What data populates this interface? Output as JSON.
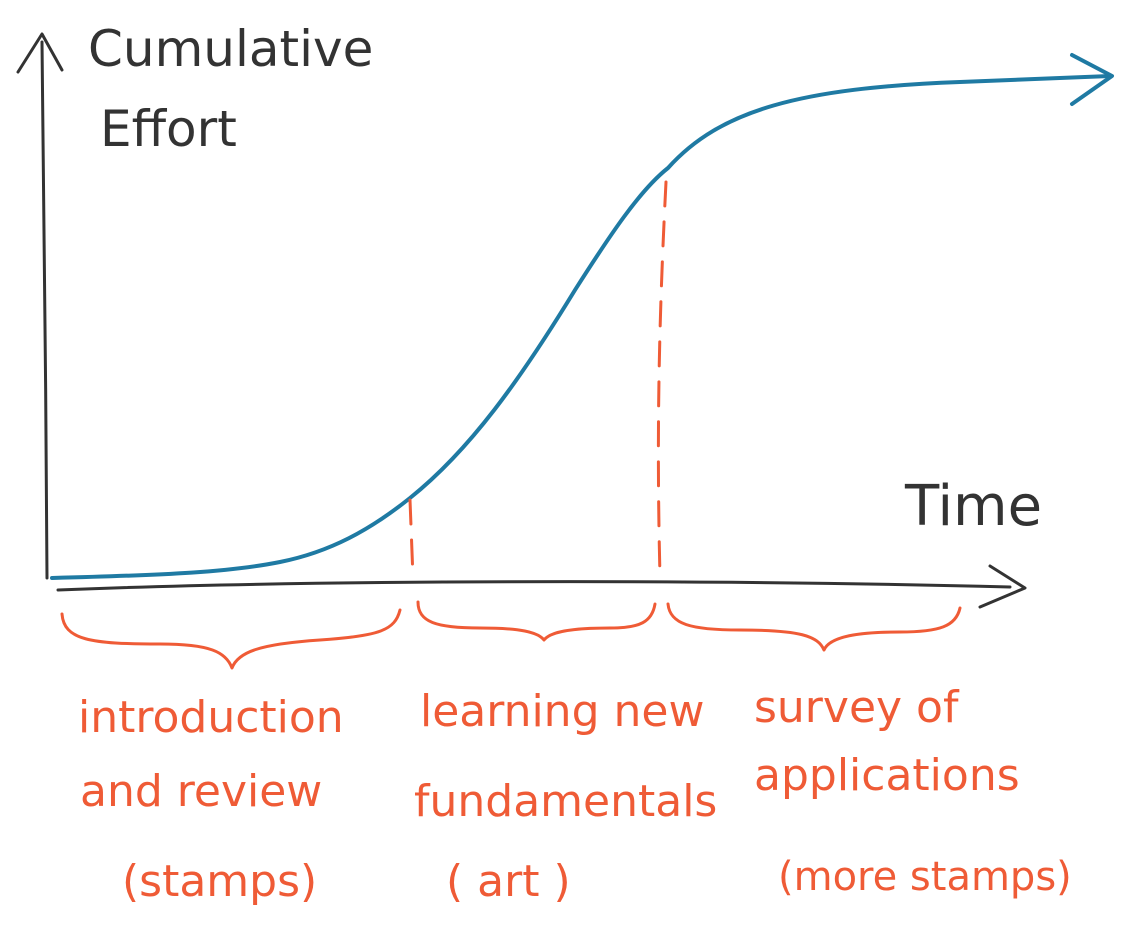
{
  "axes": {
    "y_label_line1": "Cumulative",
    "y_label_line2": "Effort",
    "x_label": "Time"
  },
  "phases": [
    {
      "line1": "introduction",
      "line2": "and review",
      "line3": "(stamps)"
    },
    {
      "line1": "learning new",
      "line2": "fundamentals",
      "line3": "( art )"
    },
    {
      "line1": "survey of",
      "line2": "applications",
      "line3": "(more stamps)"
    }
  ],
  "colors": {
    "axis": "#333333",
    "curve": "#1f7aa3",
    "phase": "#ef5b36",
    "background": "#ffffff"
  }
}
